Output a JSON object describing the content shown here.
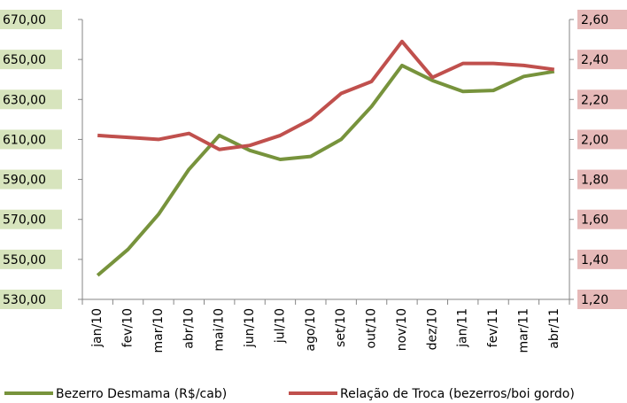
{
  "chart_data": {
    "type": "line",
    "categories": [
      "jan/10",
      "fev/10",
      "mar/10",
      "abr/10",
      "mai/10",
      "jun/10",
      "jul/10",
      "ago/10",
      "set/10",
      "out/10",
      "nov/10",
      "dez/10",
      "jan/11",
      "fev/11",
      "mar/11",
      "abr/11"
    ],
    "series": [
      {
        "name": "Bezerro Desmama (R$/cab)",
        "color": "#77933c",
        "values": [
          542,
          555,
          572.5,
          595,
          612,
          604.5,
          600,
          601.5,
          610,
          626.5,
          647,
          639.5,
          634,
          634.5,
          641.5,
          644
        ]
      },
      {
        "name": "Relação de Troca (bezerros/boi gordo)",
        "color": "#c0504d",
        "axis": "y2",
        "values": [
          2.02,
          2.01,
          2.0,
          2.03,
          1.95,
          1.97,
          2.02,
          2.1,
          2.23,
          2.29,
          2.49,
          2.31,
          2.38,
          2.38,
          2.37,
          2.35
        ]
      }
    ],
    "ylim": [
      530,
      670
    ],
    "yticks": [
      {
        "value": 530,
        "label": "530,00"
      },
      {
        "value": 550,
        "label": "550,00"
      },
      {
        "value": 570,
        "label": "570,00"
      },
      {
        "value": 590,
        "label": "590,00"
      },
      {
        "value": 610,
        "label": "610,00"
      },
      {
        "value": 630,
        "label": "630,00"
      },
      {
        "value": 650,
        "label": "650,00"
      },
      {
        "value": 670,
        "label": "670,00"
      }
    ],
    "y2lim": [
      1.2,
      2.6
    ],
    "y2ticks": [
      {
        "value": 1.2,
        "label": "1,20"
      },
      {
        "value": 1.4,
        "label": "1,40"
      },
      {
        "value": 1.6,
        "label": "1,60"
      },
      {
        "value": 1.8,
        "label": "1,80"
      },
      {
        "value": 2.0,
        "label": "2,00"
      },
      {
        "value": 2.2,
        "label": "2,20"
      },
      {
        "value": 2.4,
        "label": "2,40"
      },
      {
        "value": 2.6,
        "label": "2,60"
      }
    ],
    "grid": false,
    "legend": "bottom"
  }
}
